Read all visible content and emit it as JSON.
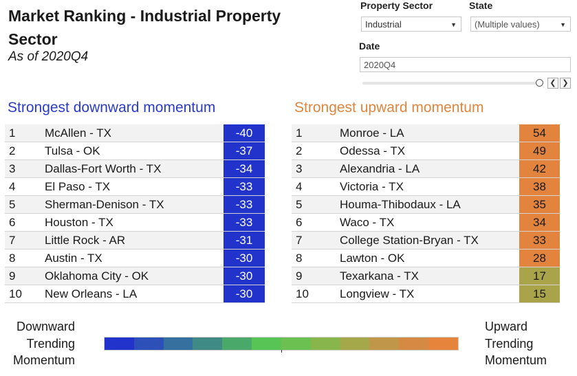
{
  "header": {
    "title": "Market Ranking - Industrial Property Sector",
    "subtitle": "As of 2020Q4"
  },
  "filters": {
    "sector_label": "Property Sector",
    "sector_value": "Industrial",
    "state_label": "State",
    "state_value": "(Multiple values)",
    "date_label": "Date",
    "date_value": "2020Q4",
    "slider_position": 1.0
  },
  "downward": {
    "title": "Strongest downward momentum",
    "color": "#2233cc",
    "rows": [
      {
        "rank": "1",
        "market": "McAllen - TX",
        "value": "-40"
      },
      {
        "rank": "2",
        "market": "Tulsa - OK",
        "value": "-37"
      },
      {
        "rank": "3",
        "market": "Dallas-Fort Worth - TX",
        "value": "-34"
      },
      {
        "rank": "4",
        "market": "El Paso - TX",
        "value": "-33"
      },
      {
        "rank": "5",
        "market": "Sherman-Denison - TX",
        "value": "-33"
      },
      {
        "rank": "6",
        "market": "Houston - TX",
        "value": "-33"
      },
      {
        "rank": "7",
        "market": "Little Rock - AR",
        "value": "-31"
      },
      {
        "rank": "8",
        "market": "Austin - TX",
        "value": "-30"
      },
      {
        "rank": "9",
        "market": "Oklahoma City - OK",
        "value": "-30"
      },
      {
        "rank": "10",
        "market": "New Orleans - LA",
        "value": "-30"
      }
    ]
  },
  "upward": {
    "title": "Strongest upward momentum",
    "color": "#e0853d",
    "rows": [
      {
        "rank": "1",
        "market": "Monroe - LA",
        "value": "54",
        "color": "#e2843e"
      },
      {
        "rank": "2",
        "market": "Odessa - TX",
        "value": "49",
        "color": "#e2843e"
      },
      {
        "rank": "3",
        "market": "Alexandria - LA",
        "value": "42",
        "color": "#e2843e"
      },
      {
        "rank": "4",
        "market": "Victoria - TX",
        "value": "38",
        "color": "#e2843e"
      },
      {
        "rank": "5",
        "market": "Houma-Thibodaux - LA",
        "value": "35",
        "color": "#e2843e"
      },
      {
        "rank": "6",
        "market": "Waco - TX",
        "value": "34",
        "color": "#e2843e"
      },
      {
        "rank": "7",
        "market": "College Station-Bryan - TX",
        "value": "33",
        "color": "#e2843e"
      },
      {
        "rank": "8",
        "market": "Lawton - OK",
        "value": "28",
        "color": "#e2843e"
      },
      {
        "rank": "9",
        "market": "Texarkana - TX",
        "value": "17",
        "color": "#a9a44a"
      },
      {
        "rank": "10",
        "market": "Longview - TX",
        "value": "15",
        "color": "#a9a44a"
      }
    ]
  },
  "legend": {
    "left_lines": [
      "Downward",
      "Trending",
      "Momentum"
    ],
    "right_lines": [
      "Upward",
      "Trending",
      "Momentum"
    ],
    "gradient": [
      "#2233cc",
      "#2c4fb8",
      "#36709f",
      "#3f8a84",
      "#4aa86a",
      "#58c455",
      "#6cc052",
      "#88b64d",
      "#a4a84a",
      "#c0974a",
      "#d58a44",
      "#e6843c"
    ]
  }
}
